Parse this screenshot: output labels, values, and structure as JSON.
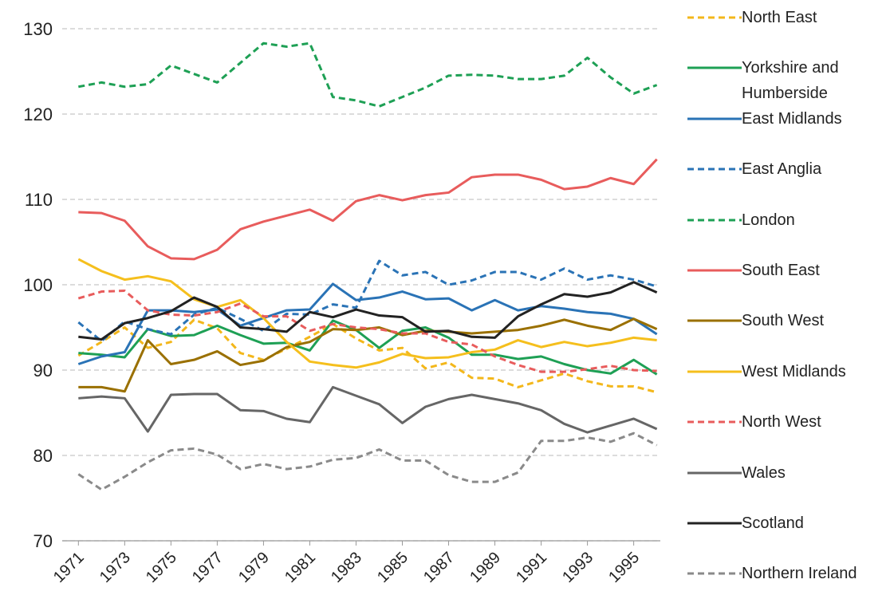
{
  "chart_data": {
    "type": "line",
    "x": [
      1971,
      1972,
      1973,
      1974,
      1975,
      1976,
      1977,
      1978,
      1979,
      1980,
      1981,
      1982,
      1983,
      1984,
      1985,
      1986,
      1987,
      1988,
      1989,
      1990,
      1991,
      1992,
      1993,
      1994,
      1995,
      1996
    ],
    "xlim": [
      1970.3,
      1996.15
    ],
    "xticks": [
      1971,
      1973,
      1975,
      1977,
      1979,
      1981,
      1983,
      1985,
      1987,
      1989,
      1991,
      1993,
      1995
    ],
    "ylim": [
      70,
      130
    ],
    "yticks": [
      70,
      80,
      90,
      100,
      110,
      120,
      130
    ],
    "grid": true,
    "legend": "right",
    "series": [
      {
        "name": "North East",
        "color": "#f3b71b",
        "dashed": true,
        "values": [
          91.7,
          93.3,
          95,
          92.6,
          93.3,
          95.9,
          94.9,
          92,
          91.2,
          92.5,
          93.9,
          95.4,
          93.7,
          92.3,
          92.6,
          90.2,
          90.9,
          89.1,
          89,
          88,
          88.8,
          89.6,
          88.7,
          88.1,
          88.1,
          87.4
        ]
      },
      {
        "name": "Yorkshire and Humberside",
        "color": "#1ea055",
        "dashed": false,
        "values": [
          92,
          91.8,
          91.5,
          94.8,
          94,
          94.1,
          95.2,
          94.1,
          93.1,
          93.2,
          92.3,
          95.8,
          94.7,
          92.6,
          94.6,
          95,
          93.8,
          91.8,
          91.8,
          91.3,
          91.6,
          90.7,
          90,
          89.6,
          91.2,
          89.5
        ]
      },
      {
        "name": "East Midlands",
        "color": "#2a73b6",
        "dashed": false,
        "values": [
          90.7,
          91.6,
          92.1,
          97,
          97,
          96.8,
          97.1,
          95.2,
          96.1,
          97,
          97.1,
          100.1,
          98.2,
          98.5,
          99.2,
          98.3,
          98.4,
          97,
          98.2,
          97,
          97.5,
          97.2,
          96.8,
          96.6,
          96,
          94.2
        ]
      },
      {
        "name": "East Anglia",
        "color": "#2a73b6",
        "dashed": true,
        "values": [
          95.6,
          93.4,
          95.7,
          94.8,
          94.2,
          96.5,
          97.3,
          96,
          94.6,
          96.6,
          96.5,
          97.7,
          97.3,
          102.8,
          101.1,
          101.5,
          100,
          100.5,
          101.5,
          101.5,
          100.6,
          101.9,
          100.6,
          101.1,
          100.6,
          99.8
        ]
      },
      {
        "name": "London",
        "color": "#1ea055",
        "dashed": true,
        "values": [
          123.2,
          123.7,
          123.2,
          123.5,
          125.7,
          124.7,
          123.7,
          126,
          128.3,
          127.9,
          128.3,
          122,
          121.6,
          120.9,
          122,
          123.1,
          124.5,
          124.6,
          124.5,
          124.1,
          124.1,
          124.5,
          126.6,
          124.3,
          122.4,
          123.4
        ]
      },
      {
        "name": "South East",
        "color": "#e85c5c",
        "dashed": false,
        "values": [
          108.5,
          108.4,
          107.5,
          104.5,
          103.1,
          103,
          104.1,
          106.5,
          107.4,
          108.1,
          108.8,
          107.5,
          109.8,
          110.5,
          109.9,
          110.5,
          110.8,
          112.6,
          112.9,
          112.9,
          112.3,
          111.2,
          111.5,
          112.5,
          111.8,
          114.7
        ]
      },
      {
        "name": "South West",
        "color": "#9a7000",
        "dashed": false,
        "values": [
          88,
          88,
          87.5,
          93.5,
          90.7,
          91.2,
          92.2,
          90.6,
          91.1,
          92.7,
          93.3,
          94.8,
          94.7,
          95,
          94.1,
          94.6,
          94.5,
          94.3,
          94.5,
          94.7,
          95.2,
          95.9,
          95.2,
          94.7,
          96,
          94.8
        ]
      },
      {
        "name": "West Midlands",
        "color": "#f5bf1d",
        "dashed": false,
        "values": [
          103,
          101.6,
          100.6,
          101,
          100.4,
          98.3,
          97.4,
          98.2,
          96.1,
          93.3,
          91,
          90.6,
          90.3,
          90.9,
          91.9,
          91.4,
          91.5,
          92.1,
          92.4,
          93.5,
          92.7,
          93.3,
          92.8,
          93.2,
          93.8,
          93.5
        ]
      },
      {
        "name": "North West",
        "color": "#e85c5c",
        "dashed": true,
        "values": [
          98.4,
          99.2,
          99.3,
          97,
          96.5,
          96.4,
          96.8,
          97.8,
          96.3,
          96.3,
          94.6,
          95.4,
          95,
          94.8,
          94.3,
          94.3,
          93.3,
          93,
          91.6,
          90.6,
          89.8,
          89.8,
          90.1,
          90.5,
          90,
          89.9
        ]
      },
      {
        "name": "Wales",
        "color": "#666666",
        "dashed": false,
        "values": [
          86.7,
          86.9,
          86.7,
          82.8,
          87.1,
          87.2,
          87.2,
          85.3,
          85.2,
          84.3,
          83.9,
          88,
          87,
          86,
          83.8,
          85.7,
          86.6,
          87.1,
          86.6,
          86.1,
          85.3,
          83.7,
          82.7,
          83.5,
          84.3,
          83.1
        ]
      },
      {
        "name": "Scotland",
        "color": "#222222",
        "dashed": false,
        "values": [
          93.9,
          93.6,
          95.5,
          96.1,
          96.9,
          98.5,
          97.4,
          95,
          94.8,
          94.5,
          96.8,
          96.2,
          97.1,
          96.4,
          96.2,
          94.5,
          94.6,
          93.9,
          93.8,
          96.3,
          97.7,
          98.9,
          98.6,
          99.1,
          100.3,
          99.1
        ]
      },
      {
        "name": "Northern Ireland",
        "color": "#8a8a8a",
        "dashed": true,
        "values": [
          77.8,
          76,
          77.5,
          79.2,
          80.6,
          80.8,
          80.1,
          78.4,
          79,
          78.4,
          78.7,
          79.5,
          79.7,
          80.7,
          79.4,
          79.4,
          77.7,
          76.9,
          76.9,
          78,
          81.7,
          81.7,
          82.1,
          81.6,
          82.6,
          81.2
        ]
      }
    ]
  }
}
